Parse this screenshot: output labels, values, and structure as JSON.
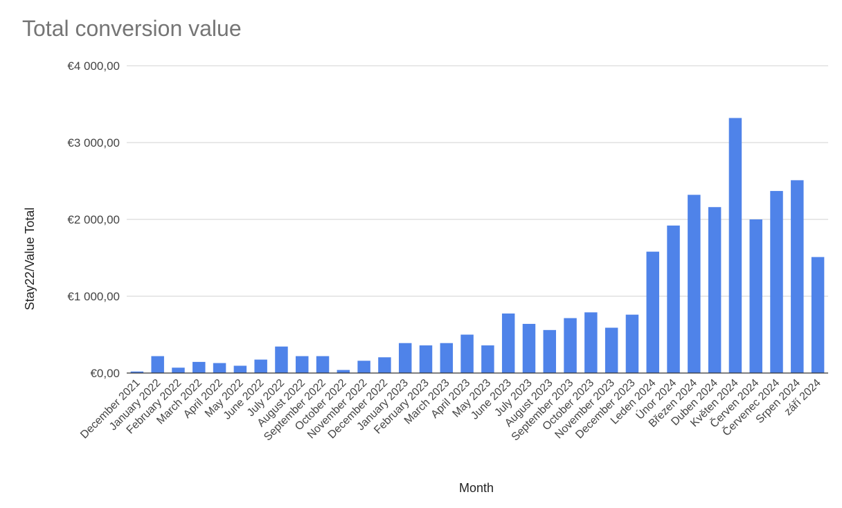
{
  "chart_data": {
    "type": "bar",
    "title": "Total conversion value",
    "xlabel": "Month",
    "ylabel": "Stay22/Value Total",
    "ylim": [
      0,
      4000
    ],
    "yticks": [
      0,
      1000,
      2000,
      3000,
      4000
    ],
    "ytick_labels": [
      "€0,00",
      "€1 000,00",
      "€2 000,00",
      "€3 000,00",
      "€4 000,00"
    ],
    "grid": true,
    "legend": "none",
    "color": "#4f83e9",
    "categories": [
      "December 2021",
      "January 2022",
      "February 2022",
      "March 2022",
      "April 2022",
      "May 2022",
      "June 2022",
      "July 2022",
      "August 2022",
      "September 2022",
      "October 2022",
      "November 2022",
      "December 2022",
      "January 2023",
      "February 2023",
      "March 2023",
      "April 2023",
      "May 2023",
      "June 2023",
      "July 2023",
      "August 2023",
      "September 2023",
      "October 2023",
      "November 2023",
      "December 2023",
      "Leden 2024",
      "Únor 2024",
      "Březen 2024",
      "Duben 2024",
      "Květen 2024",
      "Červen 2024",
      "Červenec 2024",
      "Srpen 2024",
      "září 2024"
    ],
    "values": [
      20,
      220,
      70,
      145,
      130,
      95,
      175,
      345,
      220,
      220,
      40,
      160,
      205,
      390,
      360,
      390,
      500,
      360,
      775,
      640,
      560,
      715,
      790,
      590,
      760,
      1580,
      1920,
      2320,
      2160,
      3320,
      2000,
      2370,
      2510,
      1510
    ]
  }
}
